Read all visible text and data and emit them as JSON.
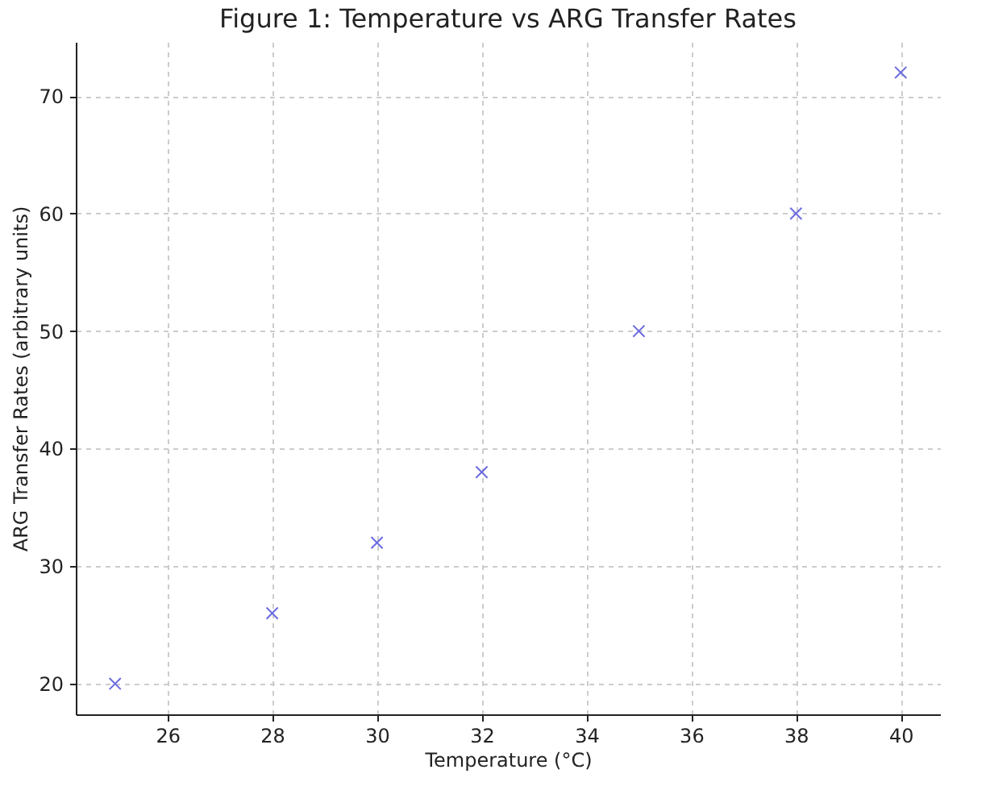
{
  "chart_data": {
    "type": "scatter",
    "title": "Figure 1: Temperature vs ARG Transfer Rates",
    "xlabel": "Temperature (°C)",
    "ylabel": "ARG Transfer Rates (arbitrary units)",
    "x": [
      25,
      28,
      30,
      32,
      35,
      38,
      40
    ],
    "series": [
      {
        "color": "#6b6be0",
        "values": [
          20,
          26,
          32,
          38,
          50,
          60,
          72
        ]
      }
    ],
    "xlim": [
      24.25,
      40.75
    ],
    "xticks": [
      26,
      28,
      30,
      32,
      34,
      36,
      38,
      40
    ],
    "ylim": [
      17.4,
      74.6
    ],
    "yticks": [
      20,
      30,
      40,
      50,
      60,
      70
    ],
    "grid": true,
    "marker": "cross",
    "legend": false
  }
}
